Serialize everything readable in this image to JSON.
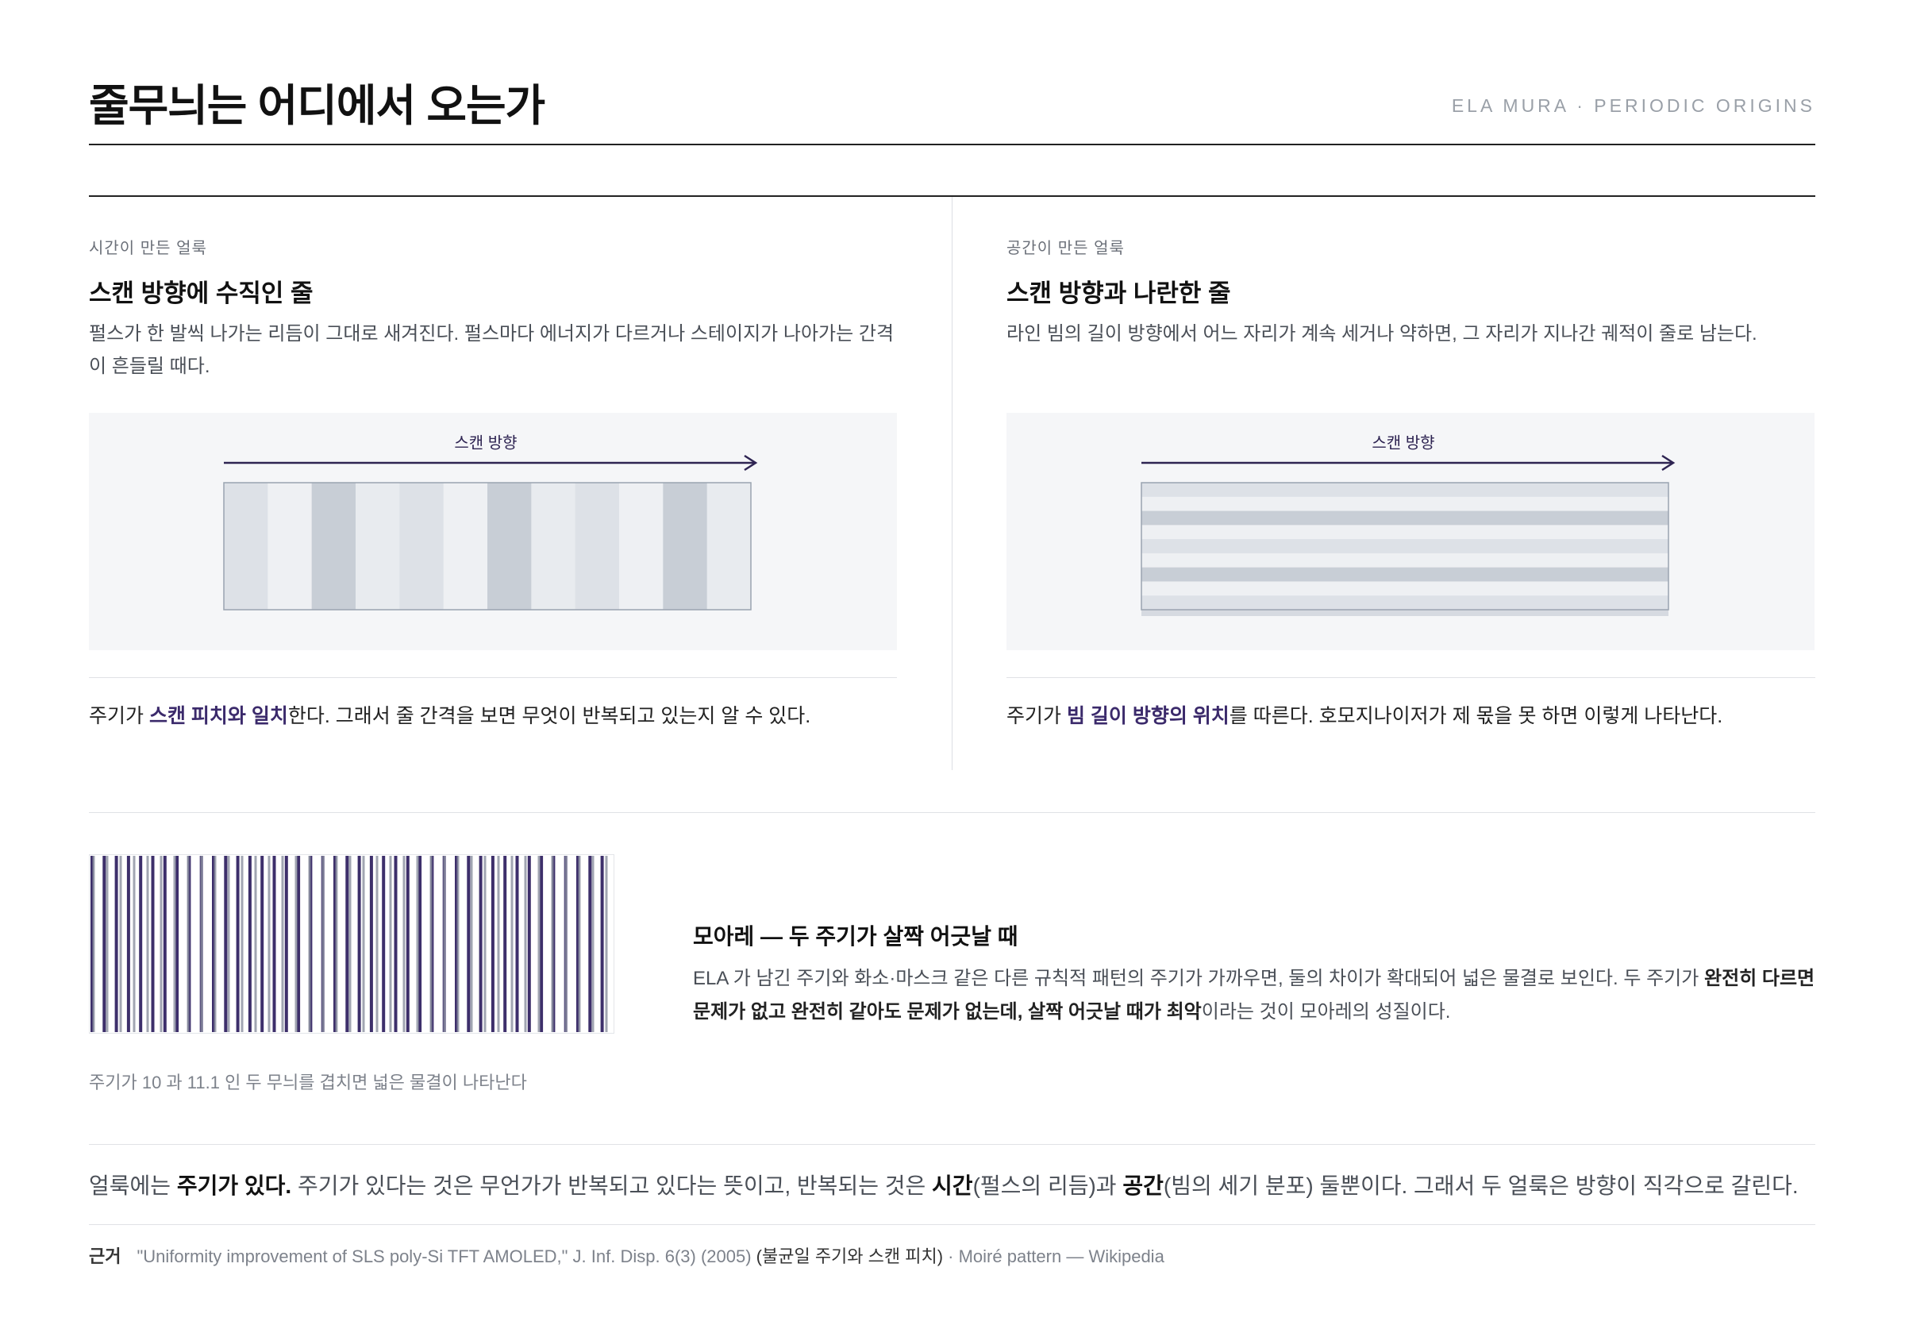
{
  "header": {
    "title": "줄무늬는 어디에서 오는가",
    "tag": "ELA MURA · PERIODIC ORIGINS"
  },
  "columns": [
    {
      "kicker": "시간이 만든 얼룩",
      "heading": "스캔 방향에 수직인 줄",
      "body": "펄스가 한 발씩 나가는 리듬이 그대로 새겨진다. 펄스마다 에너지가 다르거나 스테이지가 나아가는 간격이 흔들릴 때다.",
      "diagram_label": "스캔 방향",
      "note": [
        "주기가 ",
        "스캔 피치와 일치",
        "한다. 그래서 줄 간격을 보면 무엇이 반복되고 있는지 알 수 있다."
      ]
    },
    {
      "kicker": "공간이 만든 얼룩",
      "heading": "스캔 방향과 나란한 줄",
      "body": "라인 빔의 길이 방향에서 어느 자리가 계속 세거나 약하면, 그 자리가 지나간 궤적이 줄로 남는다.",
      "diagram_label": "스캔 방향",
      "note": [
        "주기가 ",
        "빔 길이 방향의 위치",
        "를 따른다. 호모지나이저가 제 몫을 못 하면 이렇게 나타난다."
      ]
    }
  ],
  "moire": {
    "caption": "주기가 10 과 11.1 인 두 무늬를 겹치면 넓은 물결이 나타난다",
    "heading": "모아레 — 두 주기가 살짝 어긋날 때",
    "body": [
      "ELA 가 남긴 주기와 화소·마스크 같은 다른 규칙적 패턴의 주기가 가까우면, 둘의 차이가 확대되어 넓은 물결로 보인다. 두 주기가 ",
      "완전히 다르면 문제가 없고 완전히 같아도 문제가 없는데, 살짝 어긋날 때가 최악",
      "이라는 것이 모아레의 성질이다."
    ]
  },
  "summary": [
    "얼룩에는 ",
    "주기가 있다.",
    " 주기가 있다는 것은 무언가가 반복되고 있다는 뜻이고, 반복되는 것은 ",
    "시간",
    "(펄스의 리듬)과 ",
    "공간",
    "(빔의 세기 분포) 둘뿐이다. 그래서 두 얼룩은 방향이 직각으로 갈린다."
  ],
  "sources": {
    "label": "근거",
    "text": [
      "\"Uniformity improvement of SLS poly-Si TFT AMOLED,\" J. Inf. Disp. 6(3) (2005) ",
      "(불균일 주기와 스캔 피치)",
      " · Moiré pattern — Wikipedia"
    ]
  }
}
